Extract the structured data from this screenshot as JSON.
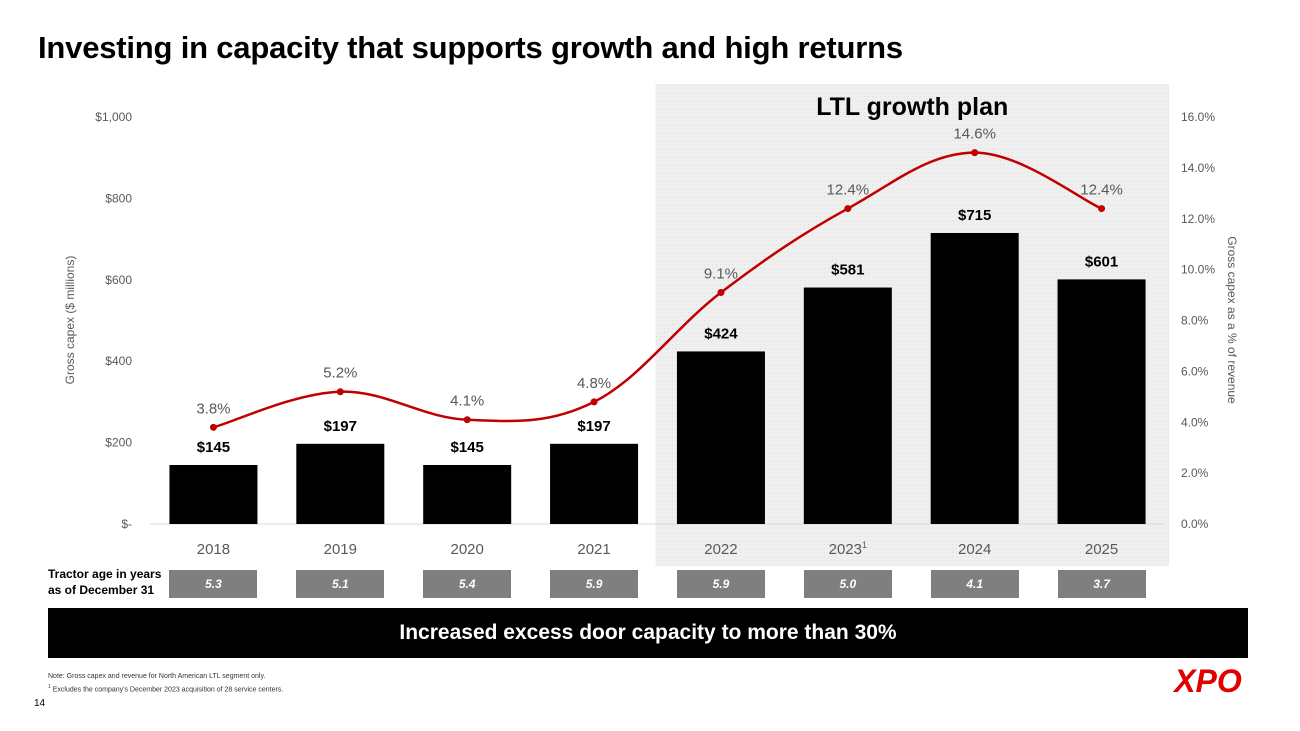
{
  "title": "Investing in capacity that supports growth and high returns",
  "chart_data": {
    "type": "bar",
    "categories": [
      "2018",
      "2019",
      "2020",
      "2021",
      "2022",
      "2023",
      "2024",
      "2025"
    ],
    "category_superscripts": [
      "",
      "",
      "",
      "",
      "",
      "1",
      "",
      ""
    ],
    "series": [
      {
        "name": "Gross capex ($ millions)",
        "type": "bar",
        "axis": "left",
        "values": [
          145,
          197,
          145,
          197,
          424,
          581,
          715,
          601
        ],
        "labels": [
          "$145",
          "$197",
          "$145",
          "$197",
          "$424",
          "$581",
          "$715",
          "$601"
        ],
        "color": "#000000"
      },
      {
        "name": "Gross capex as a % of revenue",
        "type": "line",
        "axis": "right",
        "values": [
          3.8,
          5.2,
          4.1,
          4.8,
          9.1,
          12.4,
          14.6,
          12.4
        ],
        "labels": [
          "3.8%",
          "5.2%",
          "4.1%",
          "4.8%",
          "9.1%",
          "12.4%",
          "14.6%",
          "12.4%"
        ],
        "color": "#c00000"
      }
    ],
    "ylabel": "Gross capex ($ millions)",
    "y2label": "Gross capex as a % of revenue",
    "ylim": [
      0,
      1000
    ],
    "y2lim": [
      0,
      16
    ],
    "yticks": [
      {
        "value": 0,
        "label": "$-"
      },
      {
        "value": 200,
        "label": "$200"
      },
      {
        "value": 400,
        "label": "$400"
      },
      {
        "value": 600,
        "label": "$600"
      },
      {
        "value": 800,
        "label": "$800"
      },
      {
        "value": 1000,
        "label": "$1,000"
      }
    ],
    "y2ticks": [
      {
        "value": 0,
        "label": "0.0%"
      },
      {
        "value": 2,
        "label": "2.0%"
      },
      {
        "value": 4,
        "label": "4.0%"
      },
      {
        "value": 6,
        "label": "6.0%"
      },
      {
        "value": 8,
        "label": "8.0%"
      },
      {
        "value": 10,
        "label": "10.0%"
      },
      {
        "value": 12,
        "label": "12.0%"
      },
      {
        "value": 14,
        "label": "14.0%"
      },
      {
        "value": 16,
        "label": "16.0%"
      }
    ],
    "highlight": {
      "label": "LTL growth plan",
      "from_category": "2022",
      "to_category": "2025",
      "color": "#efefef"
    },
    "grid": false
  },
  "tractor_age": {
    "label_line1": "Tractor age in years",
    "label_line2": "as of December 31",
    "values": [
      "5.3",
      "5.1",
      "5.4",
      "5.9",
      "5.9",
      "5.0",
      "4.1",
      "3.7"
    ]
  },
  "banner": "Increased excess door capacity to more than 30%",
  "notes": {
    "line1": "Note: Gross capex and revenue for North American LTL segment only.",
    "line2_sup": "1",
    "line2": " Excludes the company's December 2023 acquisition of 28 service centers."
  },
  "page_number": "14",
  "logo_text": "XPO",
  "colors": {
    "bar": "#000000",
    "line": "#c00000",
    "age_box": "#7f7f7f",
    "highlight": "#efefef",
    "logo": "#e00000"
  }
}
